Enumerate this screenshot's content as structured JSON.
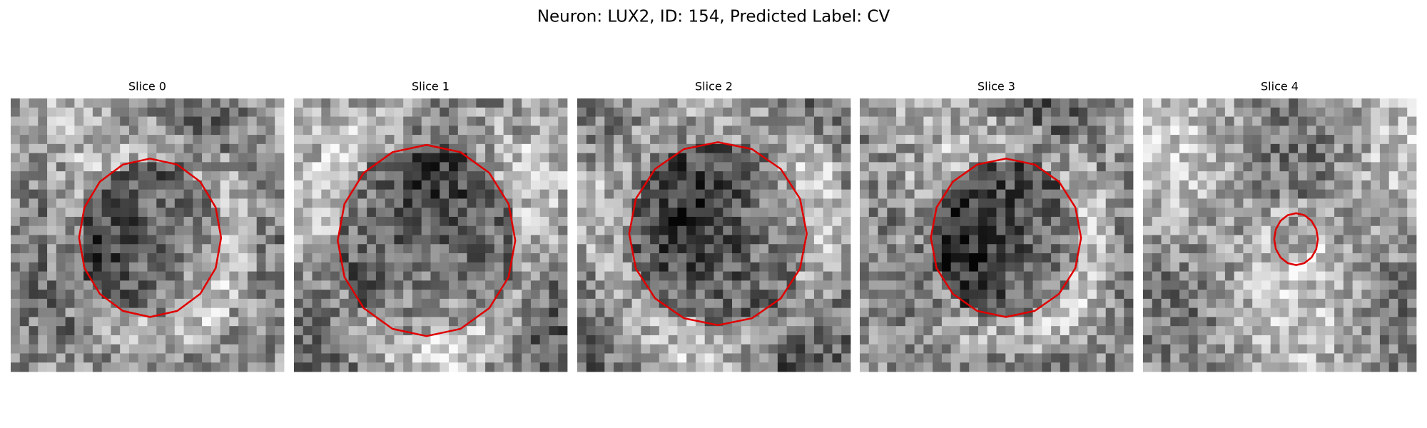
{
  "title": "Neuron: LUX2, ID: 154, Predicted Label: CV",
  "panels": [
    {
      "title": "Slice 0"
    },
    {
      "title": "Slice 1"
    },
    {
      "title": "Slice 2"
    },
    {
      "title": "Slice 3"
    },
    {
      "title": "Slice 4"
    }
  ]
}
